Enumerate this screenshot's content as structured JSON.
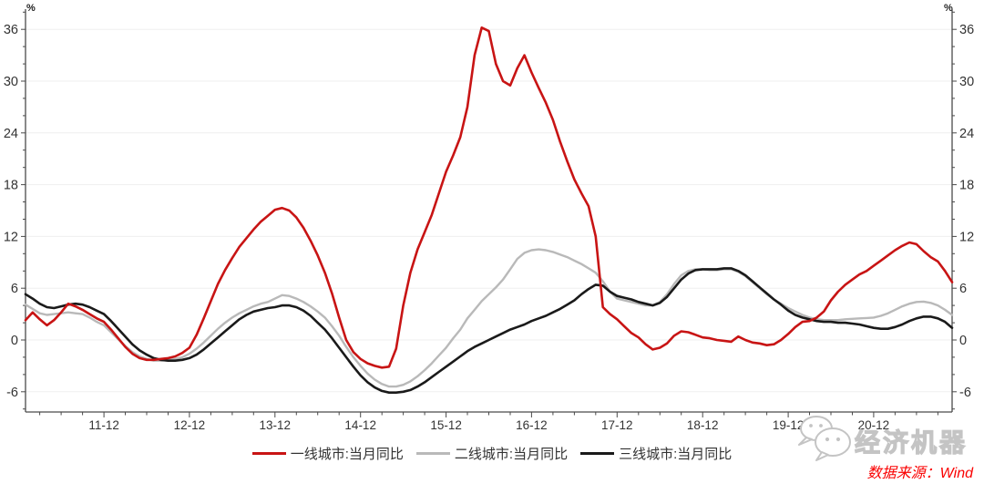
{
  "chart_data": {
    "type": "line",
    "title": "",
    "unit": "%",
    "grid": "horizontal",
    "legend_position": "bottom",
    "y_ticks": [
      36,
      30,
      24,
      18,
      12,
      6,
      0,
      -6
    ],
    "y_minor_step": 2,
    "ylim": [
      -8.5,
      38.5
    ],
    "x_minor_step_months": 3,
    "x_ticks": [
      {
        "label": "11-12",
        "month_index": 11
      },
      {
        "label": "12-12",
        "month_index": 23
      },
      {
        "label": "13-12",
        "month_index": 35
      },
      {
        "label": "14-12",
        "month_index": 47
      },
      {
        "label": "15-12",
        "month_index": 59
      },
      {
        "label": "16-12",
        "month_index": 71
      },
      {
        "label": "17-12",
        "month_index": 83
      },
      {
        "label": "18-12",
        "month_index": 95
      },
      {
        "label": "19-12",
        "month_index": 107
      },
      {
        "label": "20-12",
        "month_index": 119
      }
    ],
    "series": [
      {
        "name": "一线城市:当月同比",
        "color": "#c81414",
        "values": [
          2.3,
          3.2,
          2.4,
          1.7,
          2.3,
          3.2,
          4.2,
          3.9,
          3.5,
          3.0,
          2.5,
          2.1,
          1.2,
          0.2,
          -0.8,
          -1.6,
          -2.1,
          -2.3,
          -2.3,
          -2.2,
          -2.1,
          -1.9,
          -1.5,
          -0.9,
          0.6,
          2.5,
          4.5,
          6.5,
          8.1,
          9.5,
          10.8,
          11.8,
          12.8,
          13.7,
          14.4,
          15.1,
          15.3,
          15.0,
          14.2,
          13.0,
          11.5,
          9.8,
          7.8,
          5.4,
          2.6,
          0.0,
          -1.4,
          -2.2,
          -2.7,
          -3.0,
          -3.2,
          -3.1,
          -1.0,
          4.0,
          7.8,
          10.5,
          12.5,
          14.5,
          17.0,
          19.5,
          21.4,
          23.5,
          27.0,
          33.0,
          36.2,
          35.8,
          32.0,
          30.0,
          29.5,
          31.5,
          33.0,
          31.0,
          29.2,
          27.5,
          25.5,
          23.0,
          20.7,
          18.6,
          17.0,
          15.5,
          12.0,
          3.8,
          3.0,
          2.4,
          1.6,
          0.8,
          0.3,
          -0.5,
          -1.1,
          -0.9,
          -0.4,
          0.5,
          1.0,
          0.9,
          0.6,
          0.3,
          0.2,
          0.0,
          -0.1,
          -0.2,
          0.4,
          0.0,
          -0.3,
          -0.4,
          -0.6,
          -0.5,
          0.0,
          0.7,
          1.5,
          2.1,
          2.2,
          2.6,
          3.3,
          4.6,
          5.6,
          6.4,
          7.0,
          7.6,
          8.0,
          8.6,
          9.2,
          9.8,
          10.4,
          10.9,
          11.3,
          11.1,
          10.3,
          9.6,
          9.1,
          8.0,
          6.7
        ]
      },
      {
        "name": "二线城市:当月同比",
        "color": "#b9b9b9",
        "values": [
          4.1,
          3.6,
          3.1,
          2.9,
          3.0,
          3.1,
          3.2,
          3.1,
          3.0,
          2.6,
          2.1,
          1.7,
          0.9,
          0.1,
          -0.7,
          -1.4,
          -1.9,
          -2.2,
          -2.4,
          -2.4,
          -2.3,
          -2.2,
          -2.0,
          -1.6,
          -1.0,
          -0.3,
          0.5,
          1.3,
          2.0,
          2.6,
          3.1,
          3.5,
          3.9,
          4.2,
          4.4,
          4.8,
          5.2,
          5.1,
          4.8,
          4.4,
          3.9,
          3.3,
          2.6,
          1.6,
          0.5,
          -0.8,
          -2.0,
          -3.0,
          -3.9,
          -4.6,
          -5.1,
          -5.4,
          -5.4,
          -5.2,
          -4.8,
          -4.2,
          -3.5,
          -2.7,
          -1.8,
          -0.9,
          0.2,
          1.2,
          2.5,
          3.5,
          4.5,
          5.3,
          6.1,
          7.0,
          8.2,
          9.4,
          10.1,
          10.4,
          10.5,
          10.4,
          10.2,
          9.9,
          9.6,
          9.2,
          8.8,
          8.3,
          7.8,
          6.8,
          5.6,
          4.8,
          4.6,
          4.4,
          4.2,
          4.0,
          4.0,
          4.4,
          5.3,
          6.5,
          7.5,
          8.0,
          8.2,
          8.2,
          8.1,
          8.1,
          8.2,
          8.2,
          7.9,
          7.4,
          6.7,
          6.0,
          5.3,
          4.7,
          4.2,
          3.7,
          3.3,
          2.9,
          2.6,
          2.4,
          2.3,
          2.3,
          2.3,
          2.4,
          2.45,
          2.5,
          2.55,
          2.6,
          2.8,
          3.1,
          3.5,
          3.9,
          4.2,
          4.4,
          4.45,
          4.3,
          4.0,
          3.5,
          2.9
        ]
      },
      {
        "name": "三线城市:当月同比",
        "color": "#1a1a1a",
        "values": [
          5.3,
          4.8,
          4.2,
          3.8,
          3.7,
          3.9,
          4.1,
          4.2,
          4.1,
          3.8,
          3.4,
          3.0,
          2.2,
          1.3,
          0.4,
          -0.5,
          -1.2,
          -1.7,
          -2.1,
          -2.3,
          -2.4,
          -2.4,
          -2.3,
          -2.1,
          -1.7,
          -1.1,
          -0.4,
          0.3,
          1.0,
          1.7,
          2.4,
          2.9,
          3.3,
          3.5,
          3.7,
          3.8,
          4.0,
          4.0,
          3.8,
          3.4,
          2.8,
          2.0,
          1.2,
          0.2,
          -0.9,
          -2.0,
          -3.1,
          -4.1,
          -4.9,
          -5.5,
          -5.9,
          -6.1,
          -6.1,
          -6.0,
          -5.8,
          -5.4,
          -4.9,
          -4.3,
          -3.7,
          -3.1,
          -2.5,
          -1.9,
          -1.3,
          -0.8,
          -0.4,
          0.0,
          0.4,
          0.8,
          1.2,
          1.5,
          1.8,
          2.2,
          2.5,
          2.8,
          3.2,
          3.6,
          4.1,
          4.6,
          5.3,
          5.9,
          6.4,
          6.3,
          5.6,
          5.1,
          4.9,
          4.7,
          4.4,
          4.2,
          4.0,
          4.3,
          5.0,
          6.0,
          7.0,
          7.7,
          8.1,
          8.2,
          8.2,
          8.2,
          8.3,
          8.3,
          8.0,
          7.5,
          6.8,
          6.1,
          5.4,
          4.7,
          4.1,
          3.4,
          2.9,
          2.6,
          2.4,
          2.2,
          2.1,
          2.1,
          2.0,
          2.0,
          1.9,
          1.8,
          1.6,
          1.4,
          1.3,
          1.3,
          1.5,
          1.8,
          2.2,
          2.5,
          2.7,
          2.7,
          2.5,
          2.1,
          1.4
        ]
      }
    ]
  },
  "watermark": {
    "text": "经济机器",
    "icon": "wechat-icon"
  },
  "source": {
    "text": "数据来源：Wind"
  },
  "colors": {
    "axis": "#4a4a4a",
    "grid": "#efefef",
    "tick_text": "#333333",
    "source_text": "#fa0000",
    "watermark_stroke": "#c4c4c4"
  }
}
